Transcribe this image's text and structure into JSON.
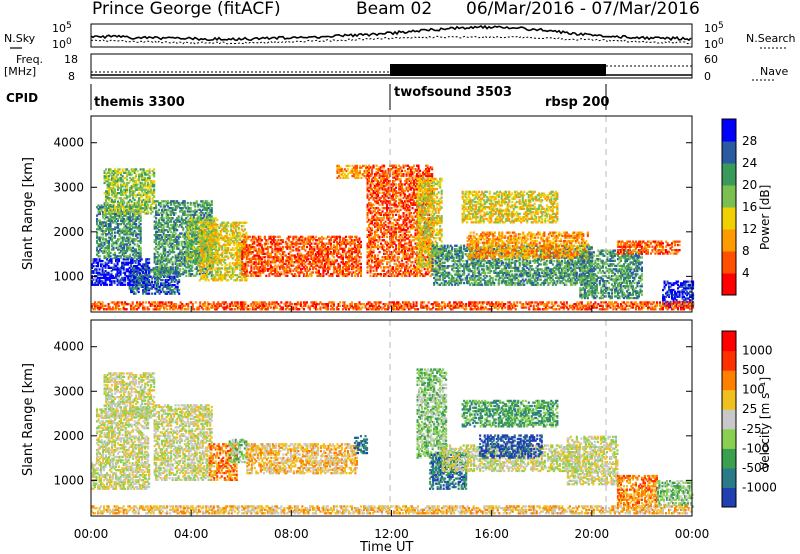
{
  "header": {
    "station": "Prince George (fitACF)",
    "beam": "Beam 02",
    "date_range": "06/Mar/2016 - 07/Mar/2016"
  },
  "strips": {
    "nsky": {
      "left_label": "N.Sky",
      "right_label": "N.Search",
      "left_ticks": [
        "10^5",
        "10^0"
      ],
      "right_ticks": [
        "10^5",
        "10^0"
      ]
    },
    "freq": {
      "left_label_top": "Freq.",
      "left_label_unit": "[MHz]",
      "right_label": "Nave",
      "left_ticks": [
        "18",
        "8"
      ],
      "right_ticks": [
        "60",
        "0"
      ]
    },
    "cpid": {
      "label": "CPID",
      "programs": [
        {
          "name": "themis 3300",
          "start_hour": 0,
          "end_hour": 12
        },
        {
          "name": "twofsound 3503",
          "start_hour": 12,
          "end_hour": 20.5
        },
        {
          "name": "rbsp 200",
          "start_hour": 20.5,
          "end_hour": 24
        }
      ]
    }
  },
  "chart_data": [
    {
      "type": "heatmap",
      "panel": "power",
      "ylabel": "Slant Range [km]",
      "xlabel": "",
      "ylim": [
        200,
        4600
      ],
      "xlim_hours": [
        0,
        24
      ],
      "yticks": [
        "1000",
        "2000",
        "3000",
        "4000"
      ],
      "colorbar": {
        "label": "Power [dB]",
        "ticks": [
          "28",
          "24",
          "20",
          "16",
          "12",
          "8",
          "4"
        ],
        "colors": [
          "#ff0000",
          "#ff5000",
          "#ff9a00",
          "#f0d000",
          "#7ac050",
          "#3a9a5a",
          "#2a5aa0",
          "#0000ff"
        ]
      },
      "echo_regions": [
        {
          "t0": 0.0,
          "t1": 2.3,
          "r0": 800,
          "r1": 1400,
          "level": 7
        },
        {
          "t0": 0.2,
          "t1": 2.0,
          "r0": 1400,
          "r1": 2600,
          "level": 5
        },
        {
          "t0": 0.5,
          "t1": 2.5,
          "r0": 2400,
          "r1": 3400,
          "level": 4
        },
        {
          "t0": 1.5,
          "t1": 3.5,
          "r0": 600,
          "r1": 1200,
          "level": 6
        },
        {
          "t0": 2.5,
          "t1": 4.8,
          "r0": 1000,
          "r1": 2700,
          "level": 5
        },
        {
          "t0": 3.8,
          "t1": 5.0,
          "r0": 1300,
          "r1": 2300,
          "level": 4
        },
        {
          "t0": 4.3,
          "t1": 6.2,
          "r0": 900,
          "r1": 2200,
          "level": 3
        },
        {
          "t0": 6.0,
          "t1": 10.8,
          "r0": 1000,
          "r1": 1900,
          "level": 1
        },
        {
          "t0": 9.8,
          "t1": 11.0,
          "r0": 3200,
          "r1": 3500,
          "level": 2
        },
        {
          "t0": 11.0,
          "t1": 13.6,
          "r0": 1000,
          "r1": 3500,
          "level": 1
        },
        {
          "t0": 13.0,
          "t1": 14.0,
          "r0": 1200,
          "r1": 3200,
          "level": 3
        },
        {
          "t0": 13.6,
          "t1": 20.0,
          "r0": 800,
          "r1": 1700,
          "level": 5
        },
        {
          "t0": 14.8,
          "t1": 18.6,
          "r0": 2200,
          "r1": 2900,
          "level": 3
        },
        {
          "t0": 15.0,
          "t1": 19.8,
          "r0": 1400,
          "r1": 2000,
          "level": 2
        },
        {
          "t0": 19.5,
          "t1": 22.0,
          "r0": 500,
          "r1": 1600,
          "level": 5
        },
        {
          "t0": 21.0,
          "t1": 23.5,
          "r0": 1500,
          "r1": 1800,
          "level": 1
        },
        {
          "t0": 22.8,
          "t1": 24.0,
          "r0": 300,
          "r1": 900,
          "level": 7
        },
        {
          "t0": 0.0,
          "t1": 24.0,
          "r0": 250,
          "r1": 420,
          "level": 1
        }
      ]
    },
    {
      "type": "heatmap",
      "panel": "velocity",
      "ylabel": "Slant Range [km]",
      "xlabel": "Time UT",
      "ylim": [
        200,
        4600
      ],
      "xlim_hours": [
        0,
        24
      ],
      "yticks": [
        "1000",
        "2000",
        "3000",
        "4000"
      ],
      "xticks": [
        "00:00",
        "04:00",
        "08:00",
        "12:00",
        "16:00",
        "20:00",
        "00:00"
      ],
      "colorbar": {
        "label": "Velocity [m s⁻¹]",
        "ticks": [
          "1000",
          "500",
          "100",
          "25",
          "-25",
          "-100",
          "-500",
          "-1000"
        ],
        "colors": [
          "#2040b0",
          "#2a7a8a",
          "#3aa050",
          "#8ad050",
          "#c8c8c8",
          "#f0c020",
          "#ff8000",
          "#ff3000",
          "#ff0000"
        ]
      },
      "echo_regions": [
        {
          "t0": 0.0,
          "t1": 2.3,
          "r0": 800,
          "r1": 1400,
          "level": 4
        },
        {
          "t0": 0.2,
          "t1": 2.3,
          "r0": 1400,
          "r1": 2600,
          "level": 4
        },
        {
          "t0": 0.5,
          "t1": 2.5,
          "r0": 2400,
          "r1": 3400,
          "level": 4
        },
        {
          "t0": 2.5,
          "t1": 4.8,
          "r0": 1000,
          "r1": 2700,
          "level": 4
        },
        {
          "t0": 4.7,
          "t1": 5.8,
          "r0": 1000,
          "r1": 1800,
          "level": 6
        },
        {
          "t0": 5.5,
          "t1": 6.2,
          "r0": 1400,
          "r1": 1900,
          "level": 3
        },
        {
          "t0": 6.2,
          "t1": 10.6,
          "r0": 1150,
          "r1": 1800,
          "level": 5
        },
        {
          "t0": 10.5,
          "t1": 11.0,
          "r0": 1600,
          "r1": 2000,
          "level": 1
        },
        {
          "t0": 13.0,
          "t1": 14.2,
          "r0": 1500,
          "r1": 3500,
          "level": 3
        },
        {
          "t0": 13.5,
          "t1": 15.0,
          "r0": 800,
          "r1": 1600,
          "level": 1
        },
        {
          "t0": 14.0,
          "t1": 19.5,
          "r0": 1200,
          "r1": 1800,
          "level": 4
        },
        {
          "t0": 15.5,
          "t1": 18.0,
          "r0": 1500,
          "r1": 2000,
          "level": 0
        },
        {
          "t0": 14.8,
          "t1": 18.6,
          "r0": 2200,
          "r1": 2800,
          "level": 2
        },
        {
          "t0": 19.0,
          "t1": 21.0,
          "r0": 900,
          "r1": 2000,
          "level": 4
        },
        {
          "t0": 21.0,
          "t1": 22.6,
          "r0": 400,
          "r1": 1100,
          "level": 6
        },
        {
          "t0": 22.6,
          "t1": 24.0,
          "r0": 400,
          "r1": 1000,
          "level": 3
        },
        {
          "t0": 0.0,
          "t1": 24.0,
          "r0": 250,
          "r1": 420,
          "level": 5
        }
      ]
    }
  ]
}
